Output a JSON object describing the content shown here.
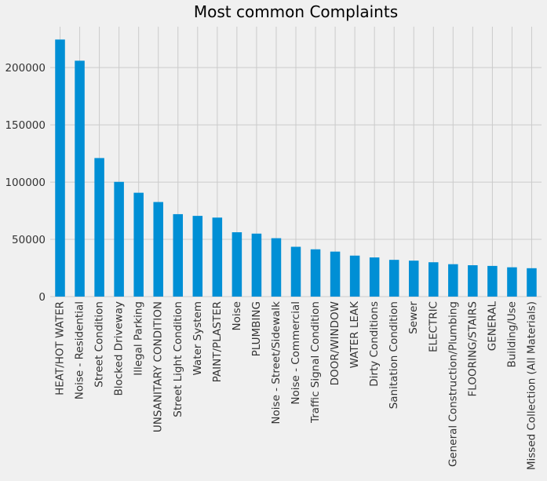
{
  "chart_data": {
    "type": "bar",
    "title": "Most common Complaints",
    "xlabel": "",
    "ylabel": "",
    "categories": [
      "HEAT/HOT WATER",
      "Noise - Residential",
      "Street Condition",
      "Blocked Driveway",
      "Illegal Parking",
      "UNSANITARY CONDITION",
      "Street Light Condition",
      "Water System",
      "PAINT/PLASTER",
      "Noise",
      "PLUMBING",
      "Noise - Street/Sidewalk",
      "Noise - Commercial",
      "Traffic Signal Condition",
      "DOOR/WINDOW",
      "WATER LEAK",
      "Dirty Conditions",
      "Sanitation Condition",
      "Sewer",
      "ELECTRIC",
      "General Construction/Plumbing",
      "FLOORING/STAIRS",
      "GENERAL",
      "Building/Use",
      "Missed Collection (All Materials)"
    ],
    "values": [
      224500,
      206000,
      121000,
      100200,
      90700,
      82600,
      72000,
      70500,
      69000,
      56200,
      55000,
      51000,
      43500,
      41300,
      39300,
      35800,
      34200,
      32100,
      31400,
      30000,
      28300,
      27400,
      26800,
      25600,
      24800
    ],
    "yticks": [
      0,
      50000,
      100000,
      150000,
      200000
    ],
    "ytick_labels": [
      "0",
      "50000",
      "100000",
      "150000",
      "200000"
    ],
    "ylim": [
      0,
      235725
    ],
    "grid": true,
    "bar_color": "#008fd5",
    "background_color": "#f0f0f0",
    "grid_color": "#cbcbcb"
  }
}
